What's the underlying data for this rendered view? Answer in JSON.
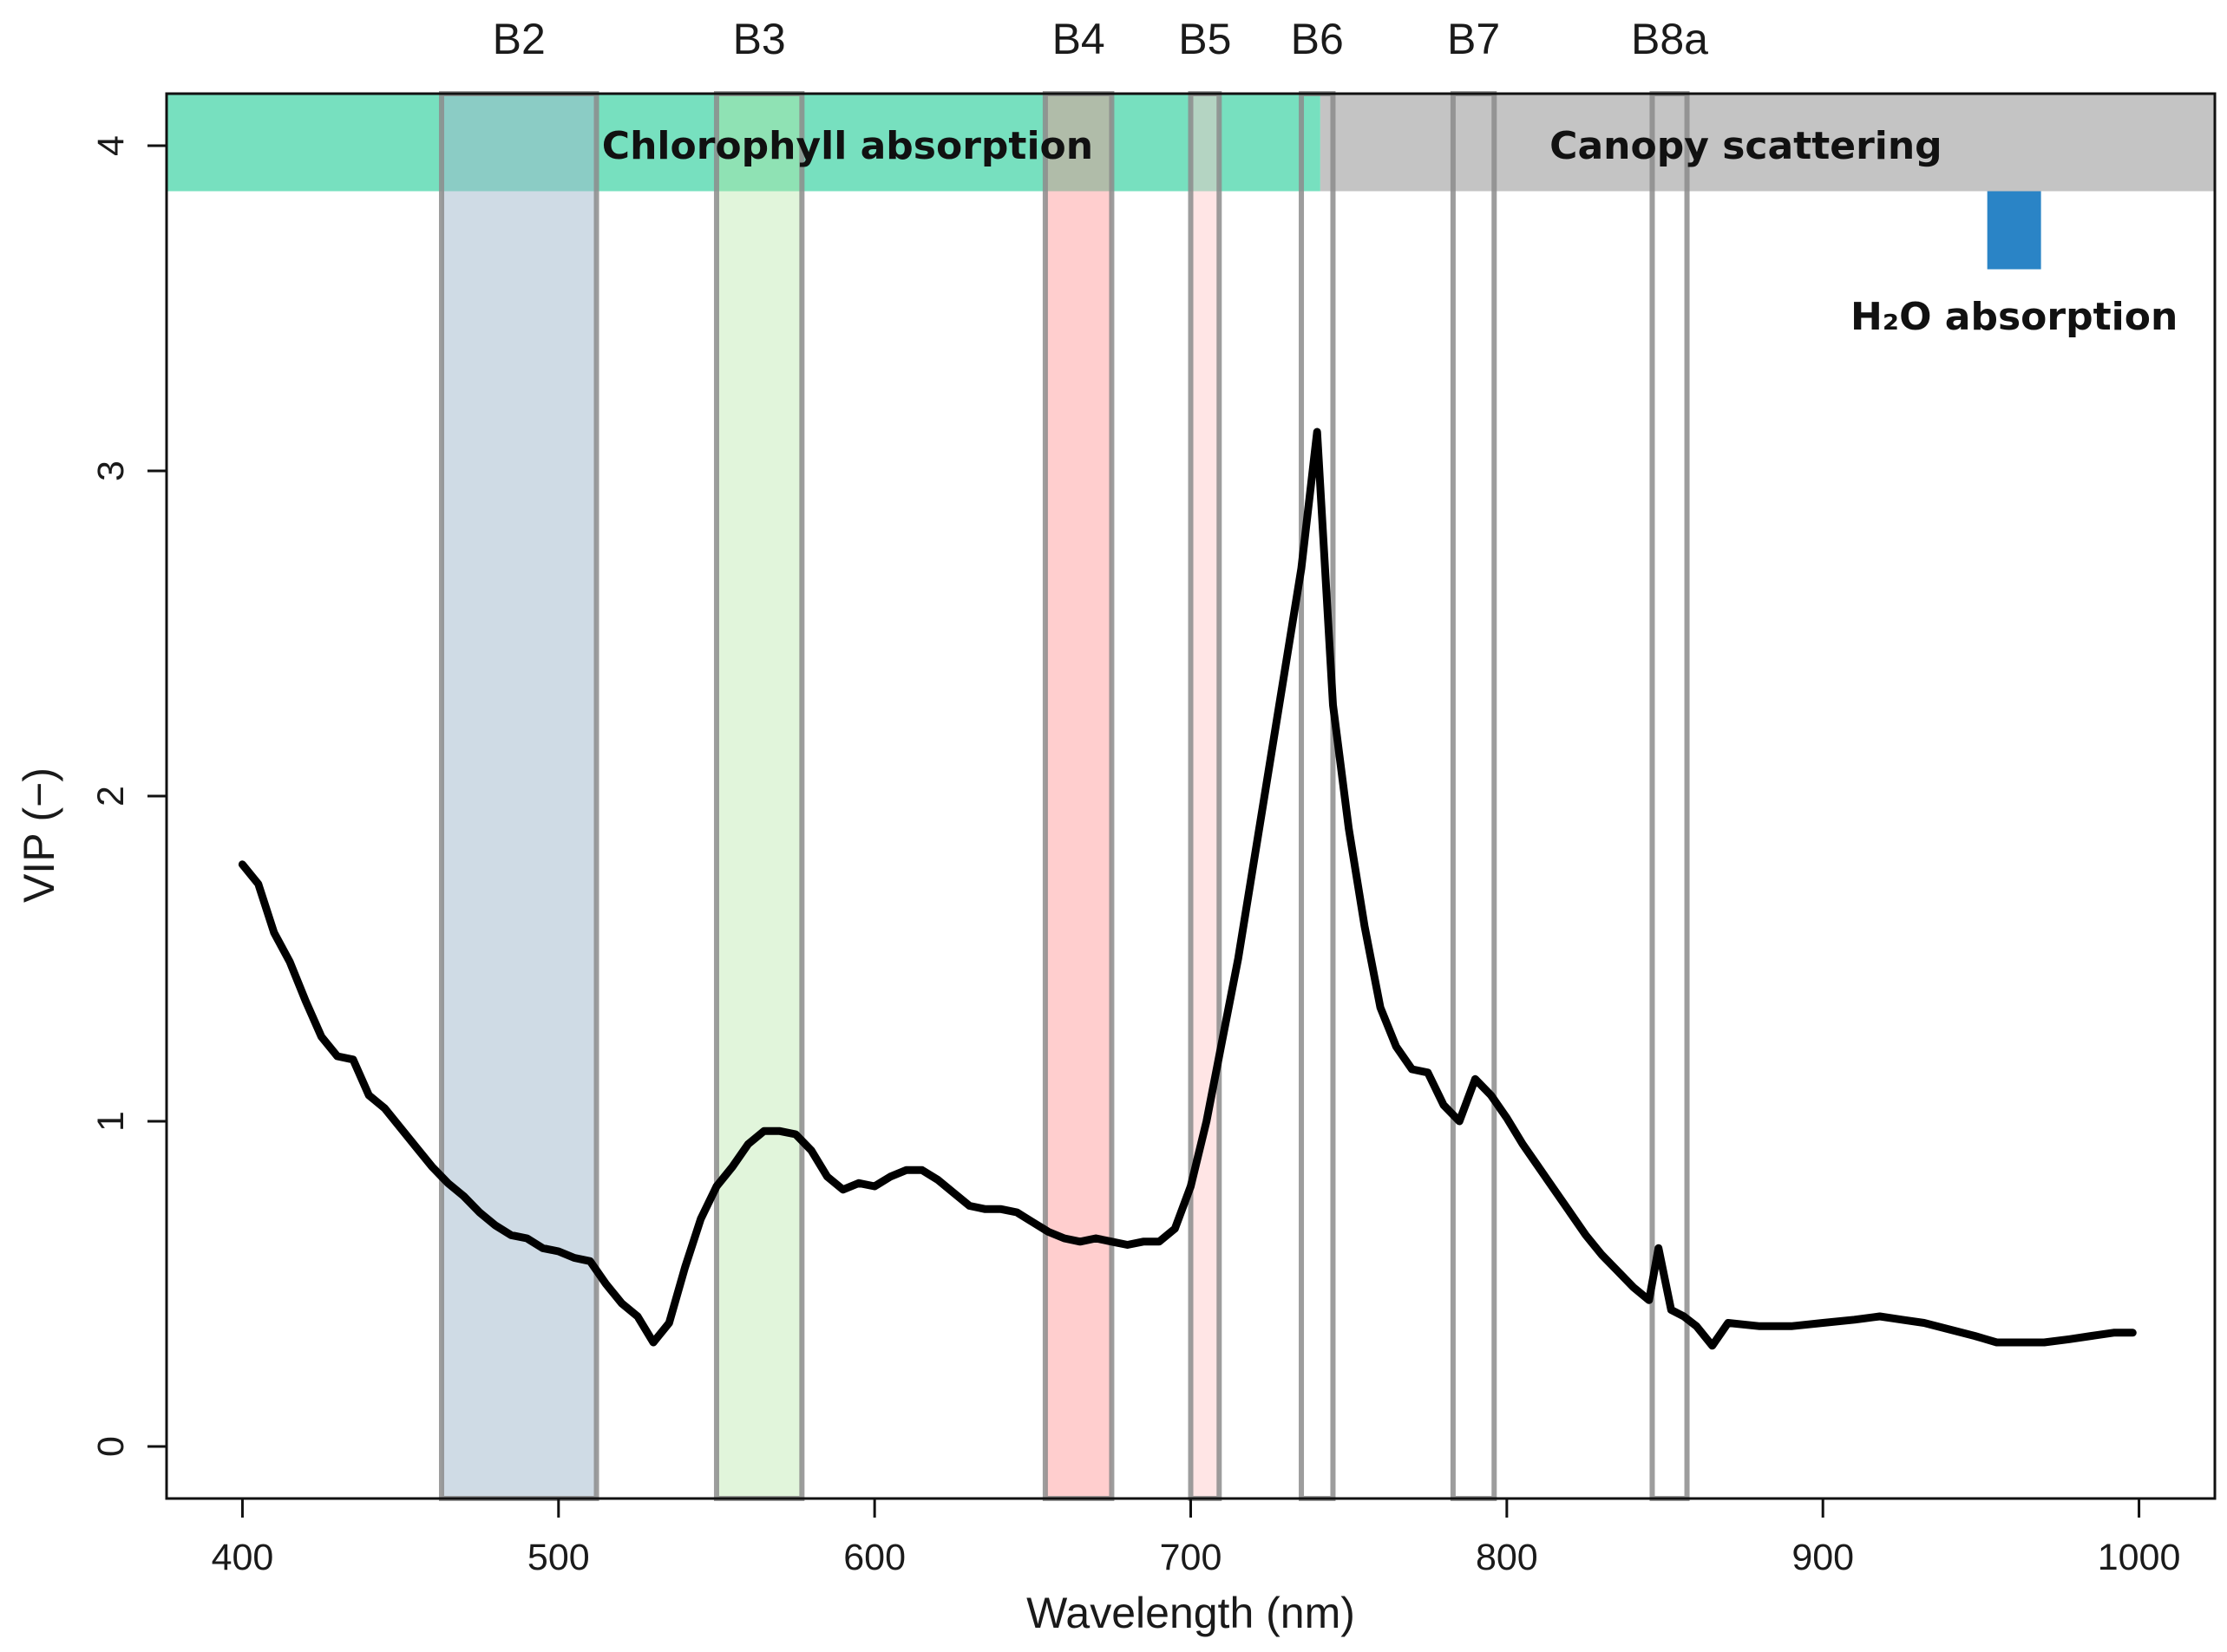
{
  "chart_data": {
    "type": "line",
    "title": "",
    "xlabel": "Wavelength (nm)",
    "ylabel": "VIP (−)",
    "xlim": [
      376,
      1024
    ],
    "ylim": [
      -0.16,
      4.16
    ],
    "x_ticks": [
      400,
      500,
      600,
      700,
      800,
      900,
      1000
    ],
    "y_ticks": [
      0,
      1,
      2,
      3,
      4
    ],
    "grid": false,
    "regions": [
      {
        "label": "Chlorophyll absorption",
        "x_start": 376,
        "x_end": 741,
        "y_start": 3.86,
        "y_end": 4.16,
        "color": "#77e0bf"
      },
      {
        "label": "Canopy scattering",
        "x_start": 741,
        "x_end": 1024,
        "y_start": 3.86,
        "y_end": 4.16,
        "color": "#c4c4c4"
      },
      {
        "label": "H₂O absorption",
        "x_start": 952,
        "x_end": 969,
        "y_start": 3.62,
        "y_end": 3.86,
        "color": "#2a84c6"
      }
    ],
    "bands": [
      {
        "name": "B2",
        "x_start": 463,
        "x_end": 512,
        "fill": "#9fb8cc",
        "fill_opacity": 0.5
      },
      {
        "name": "B3",
        "x_start": 550,
        "x_end": 577,
        "fill": "#b4e6a6",
        "fill_opacity": 0.4
      },
      {
        "name": "B4",
        "x_start": 654,
        "x_end": 675,
        "fill": "#ff8a8a",
        "fill_opacity": 0.42
      },
      {
        "name": "B5",
        "x_start": 700,
        "x_end": 709,
        "fill": "#ffc6c6",
        "fill_opacity": 0.45
      },
      {
        "name": "B6",
        "x_start": 735,
        "x_end": 745,
        "fill": "#ffffff",
        "fill_opacity": 0.0
      },
      {
        "name": "B7",
        "x_start": 783,
        "x_end": 796,
        "fill": "#ffffff",
        "fill_opacity": 0.0
      },
      {
        "name": "B8a",
        "x_start": 846,
        "x_end": 857,
        "fill": "#ffffff",
        "fill_opacity": 0.0
      }
    ],
    "series": [
      {
        "name": "VIP",
        "color": "#000000",
        "x": [
          400,
          405,
          410,
          415,
          420,
          425,
          430,
          435,
          440,
          445,
          450,
          455,
          460,
          465,
          470,
          475,
          480,
          485,
          490,
          495,
          500,
          505,
          510,
          515,
          520,
          525,
          530,
          535,
          540,
          545,
          550,
          555,
          560,
          565,
          570,
          575,
          580,
          585,
          590,
          595,
          600,
          605,
          610,
          615,
          620,
          625,
          630,
          635,
          640,
          645,
          650,
          655,
          660,
          665,
          670,
          675,
          680,
          685,
          690,
          695,
          700,
          705,
          710,
          715,
          720,
          725,
          730,
          735,
          740,
          745,
          750,
          755,
          760,
          765,
          770,
          775,
          780,
          785,
          790,
          795,
          800,
          805,
          810,
          815,
          820,
          825,
          830,
          835,
          840,
          845,
          848,
          852,
          856,
          860,
          865,
          870,
          880,
          890,
          900,
          910,
          918,
          925,
          932,
          940,
          948,
          955,
          962,
          970,
          978,
          985,
          992,
          998
        ],
        "y": [
          1.79,
          1.73,
          1.58,
          1.49,
          1.37,
          1.26,
          1.2,
          1.19,
          1.08,
          1.04,
          0.98,
          0.92,
          0.86,
          0.81,
          0.77,
          0.72,
          0.68,
          0.65,
          0.64,
          0.61,
          0.6,
          0.58,
          0.57,
          0.5,
          0.44,
          0.4,
          0.32,
          0.38,
          0.55,
          0.7,
          0.8,
          0.86,
          0.93,
          0.97,
          0.97,
          0.96,
          0.91,
          0.83,
          0.79,
          0.81,
          0.8,
          0.83,
          0.85,
          0.85,
          0.82,
          0.78,
          0.74,
          0.73,
          0.73,
          0.72,
          0.69,
          0.66,
          0.64,
          0.63,
          0.64,
          0.63,
          0.62,
          0.63,
          0.63,
          0.67,
          0.8,
          1.0,
          1.25,
          1.5,
          1.8,
          2.1,
          2.4,
          2.7,
          3.12,
          2.28,
          1.9,
          1.6,
          1.35,
          1.23,
          1.16,
          1.15,
          1.05,
          1.0,
          1.13,
          1.08,
          1.01,
          0.93,
          0.86,
          0.79,
          0.72,
          0.65,
          0.59,
          0.54,
          0.49,
          0.45,
          0.61,
          0.42,
          0.4,
          0.37,
          0.31,
          0.38,
          0.37,
          0.37,
          0.38,
          0.39,
          0.4,
          0.39,
          0.38,
          0.36,
          0.34,
          0.32,
          0.32,
          0.32,
          0.33,
          0.34,
          0.35,
          0.35
        ]
      }
    ]
  }
}
